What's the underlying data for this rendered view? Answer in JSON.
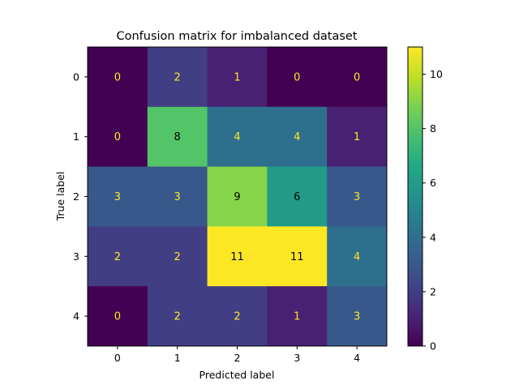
{
  "chart_data": {
    "type": "heatmap",
    "title": "Confusion matrix for imbalanced dataset",
    "xlabel": "Predicted label",
    "ylabel": "True label",
    "x_categories": [
      "0",
      "1",
      "2",
      "3",
      "4"
    ],
    "y_categories": [
      "0",
      "1",
      "2",
      "3",
      "4"
    ],
    "values": [
      [
        0,
        2,
        1,
        0,
        0
      ],
      [
        0,
        8,
        4,
        4,
        1
      ],
      [
        3,
        3,
        9,
        6,
        3
      ],
      [
        2,
        2,
        11,
        11,
        4
      ],
      [
        0,
        2,
        2,
        1,
        3
      ]
    ],
    "colormap": "viridis",
    "value_range": [
      0,
      11
    ],
    "colorbar_ticks": [
      0,
      2,
      4,
      6,
      8,
      10
    ],
    "text_color_light": "#fde725",
    "text_color_dark": "#000000",
    "grid": false
  }
}
